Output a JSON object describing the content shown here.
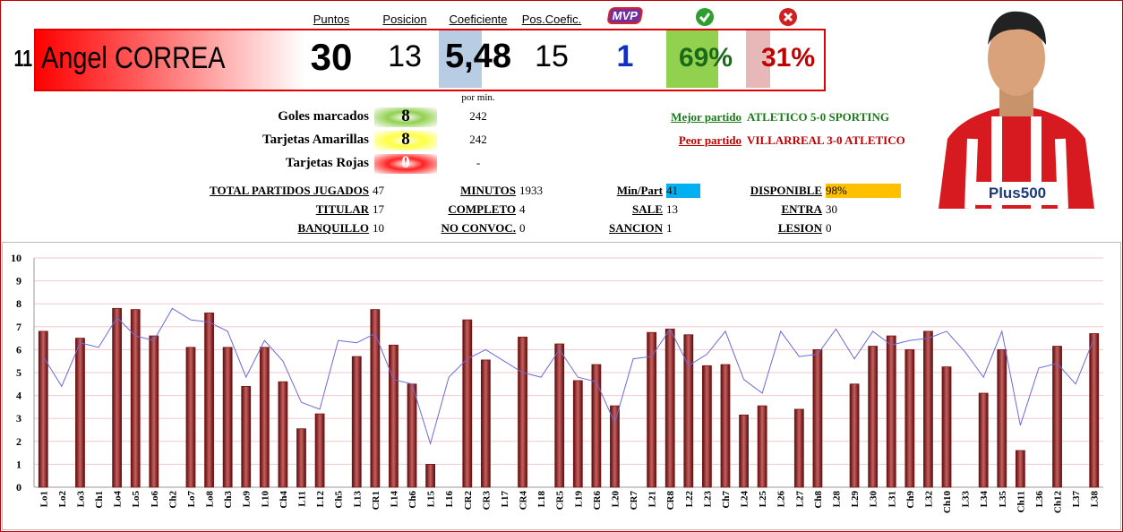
{
  "player": {
    "number": "11",
    "name": "Angel CORREA",
    "sponsor": "Plus500"
  },
  "summary": [
    {
      "label": "Puntos",
      "value": "30"
    },
    {
      "label": "Posicion",
      "value": "13"
    },
    {
      "label": "Coeficiente",
      "value": "5,48"
    },
    {
      "label": "Pos.Coefic.",
      "value": "15"
    },
    {
      "label": "MVP",
      "value": "1"
    },
    {
      "value": "69%"
    },
    {
      "value": "31%"
    }
  ],
  "per_min_label": "por min.",
  "counts": [
    {
      "label": "Goles marcados",
      "value": "8",
      "per_min": "242"
    },
    {
      "label": "Tarjetas Amarillas",
      "value": "8",
      "per_min": "242"
    },
    {
      "label": "Tarjetas Rojas",
      "value": "0",
      "per_min": "-"
    }
  ],
  "matches": [
    {
      "label": "Mejor partido",
      "value": "ATLETICO 5-0 SPORTING"
    },
    {
      "label": "Peor partido",
      "value": "VILLARREAL 3-0 ATLETICO"
    }
  ],
  "stats": [
    [
      [
        "TOTAL PARTIDOS JUGADOS",
        "47"
      ],
      [
        "MINUTOS",
        "1933"
      ],
      [
        "Min/Part",
        "41"
      ],
      [
        "DISPONIBLE",
        "98%"
      ]
    ],
    [
      [
        "TITULAR",
        "17"
      ],
      [
        "COMPLETO",
        "4"
      ],
      [
        "SALE",
        "13"
      ],
      [
        "ENTRA",
        "30"
      ]
    ],
    [
      [
        "BANQUILLO",
        "10"
      ],
      [
        "NO CONVOC.",
        "0"
      ],
      [
        "SANCION",
        "1"
      ],
      [
        "LESION",
        "0"
      ]
    ]
  ],
  "chart_data": {
    "type": "bar",
    "grid": true,
    "ylim": [
      0,
      10
    ],
    "yticks": [
      0,
      1,
      2,
      3,
      4,
      5,
      6,
      7,
      8,
      9,
      10
    ],
    "categories": [
      "Lo1",
      "Lo2",
      "Lo3",
      "Ch1",
      "Lo4",
      "Lo5",
      "Lo6",
      "Ch2",
      "Lo7",
      "Lo8",
      "Ch3",
      "Lo9",
      "L10",
      "Ch4",
      "L11",
      "L12",
      "Ch5",
      "L13",
      "CR1",
      "L14",
      "Ch6",
      "L15",
      "L16",
      "CR2",
      "CR3",
      "L17",
      "CR4",
      "L18",
      "CR5",
      "L19",
      "CR6",
      "L20",
      "CR7",
      "L21",
      "CR8",
      "L22",
      "L23",
      "Ch7",
      "L24",
      "L25",
      "L26",
      "L27",
      "Ch8",
      "L28",
      "L29",
      "L30",
      "L31",
      "Ch9",
      "L32",
      "Ch10",
      "L33",
      "L34",
      "L35",
      "Ch11",
      "L36",
      "Ch12",
      "L37",
      "L38"
    ],
    "series": [
      {
        "type": "bar",
        "color": "#7a1414",
        "values": [
          6.8,
          null,
          6.5,
          null,
          7.8,
          7.75,
          6.6,
          null,
          6.1,
          7.6,
          6.1,
          4.4,
          6.1,
          4.6,
          2.55,
          3.2,
          null,
          5.7,
          7.75,
          6.2,
          4.5,
          1.0,
          null,
          7.3,
          5.55,
          null,
          6.55,
          null,
          6.25,
          4.65,
          5.35,
          3.55,
          null,
          6.75,
          6.9,
          6.65,
          5.3,
          5.35,
          3.15,
          3.55,
          null,
          3.4,
          6.0,
          null,
          4.5,
          6.15,
          6.6,
          6.0,
          6.8,
          5.25,
          null,
          4.1,
          6.0,
          1.6,
          null,
          6.15,
          null,
          6.7
        ]
      },
      {
        "type": "line",
        "color": "#6b6bd6",
        "values": [
          5.7,
          4.4,
          6.3,
          6.1,
          7.4,
          6.6,
          6.4,
          7.8,
          7.3,
          7.2,
          6.8,
          4.8,
          6.4,
          5.5,
          3.7,
          3.4,
          6.4,
          6.3,
          6.7,
          4.7,
          4.5,
          1.9,
          4.8,
          5.6,
          6.0,
          5.5,
          5.0,
          4.8,
          6.0,
          4.8,
          4.6,
          2.8,
          5.6,
          5.7,
          6.9,
          5.3,
          5.8,
          6.8,
          4.7,
          4.1,
          6.8,
          5.7,
          5.8,
          6.9,
          5.6,
          6.8,
          6.2,
          6.4,
          6.5,
          6.8,
          5.9,
          4.8,
          6.8,
          2.7,
          5.2,
          5.4,
          4.5,
          6.5
        ]
      }
    ]
  }
}
